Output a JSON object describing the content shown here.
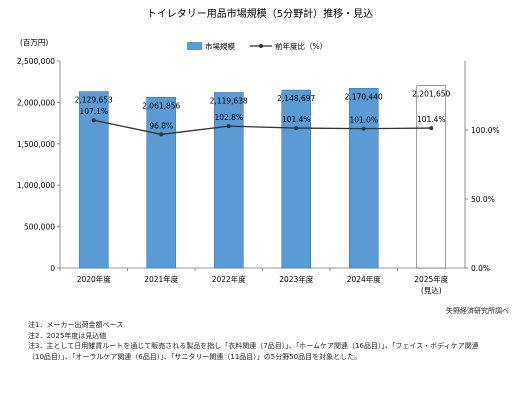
{
  "chart_data": {
    "type": "bar",
    "title": "トイレタリー用品市場規模（5分野計）推移・見込",
    "y_unit": "(百万円)",
    "categories": [
      "2020年度",
      "2021年度",
      "2022年度",
      "2023年度",
      "2024年度",
      "2025年度"
    ],
    "last_category_note": "(見込)",
    "series": [
      {
        "name": "市場規模",
        "type": "bar",
        "axis": "left",
        "values": [
          2129653,
          2061856,
          2119638,
          2148697,
          2170440,
          2201650
        ],
        "labels": [
          "2,129,653",
          "2,061,856",
          "2,119,638",
          "2,148,697",
          "2,170,440",
          "2,201,650"
        ]
      },
      {
        "name": "前年度比（%）",
        "type": "line",
        "axis": "right",
        "values": [
          107.1,
          96.8,
          102.8,
          101.4,
          101.0,
          101.4
        ],
        "labels": [
          "107.1%",
          "96.8%",
          "102.8%",
          "101.4%",
          "101.0%",
          "101.4%"
        ]
      }
    ],
    "y_left": {
      "min": 0,
      "max": 2500000,
      "ticks": [
        0,
        500000,
        1000000,
        1500000,
        2000000,
        2500000
      ],
      "tick_labels": [
        "0",
        "500,000",
        "1,000,000",
        "1,500,000",
        "2,000,000",
        "2,500,000"
      ]
    },
    "y_right": {
      "min": 0,
      "max": 150,
      "ticks": [
        0,
        50,
        100
      ],
      "tick_labels": [
        "0.0%",
        "50.0%",
        "100.0%"
      ]
    },
    "projected_index": 5,
    "legend_position": "top",
    "grid": false,
    "colors": {
      "bar": "#5b9bd5",
      "bar_edge": "#3a78b5",
      "line": "#333333",
      "projected_bar": "#ffffff"
    }
  },
  "source": "矢野経済研究所調べ",
  "notes": [
    "注1．メーカー出荷金額ベース",
    "注2．2025年度は見込値",
    "注3．主として日用雑貨ルートを通じて販売される製品を指し「衣料関連（7品目）」、「ホームケア関連（16品目）」、「フェイス・ボディケア関連",
    "（10品目）」、「オーラルケア関連（6品目）」、「サニタリー関連（11品目）」の5分野50品目を対象とした。"
  ]
}
